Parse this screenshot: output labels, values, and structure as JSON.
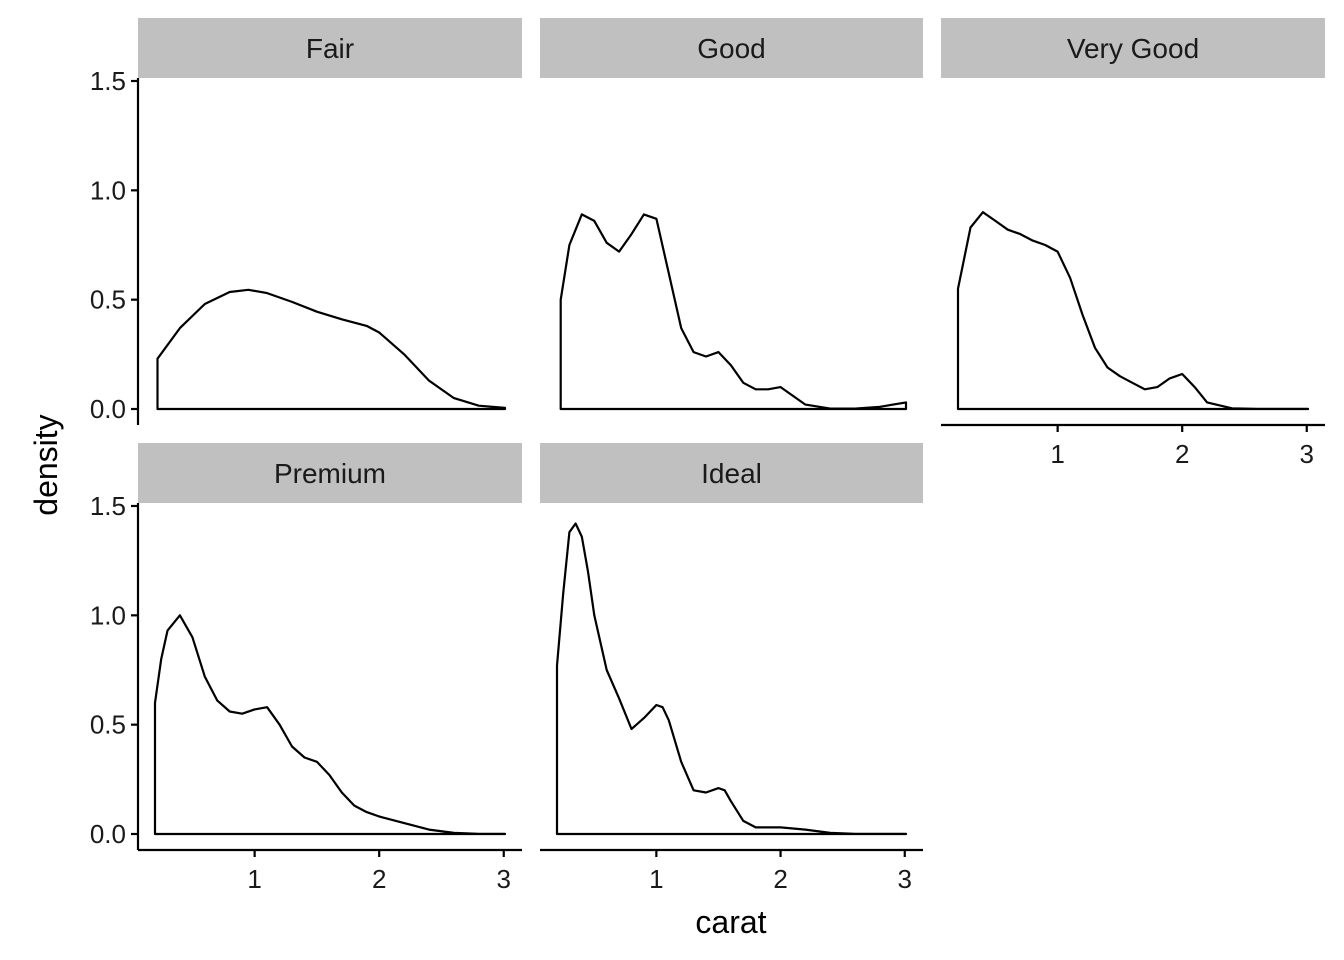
{
  "chart_data": {
    "type": "area",
    "facet_by": "cut",
    "xlabel": "carat",
    "ylabel": "density",
    "xlim": [
      0.2,
      3.01
    ],
    "ylim": [
      0,
      1.5
    ],
    "x_ticks": [
      1,
      2,
      3
    ],
    "y_ticks": [
      0.0,
      0.5,
      1.0,
      1.5
    ],
    "y_tick_labels": [
      "0.0",
      "0.5",
      "1.0",
      "1.5"
    ],
    "grid": false,
    "panels": [
      {
        "name": "Fair",
        "x": [
          0.22,
          0.4,
          0.6,
          0.8,
          0.95,
          1.1,
          1.3,
          1.5,
          1.7,
          1.9,
          2.0,
          2.2,
          2.4,
          2.6,
          2.8,
          3.01
        ],
        "density": [
          0.23,
          0.37,
          0.48,
          0.535,
          0.545,
          0.53,
          0.49,
          0.445,
          0.41,
          0.38,
          0.35,
          0.25,
          0.13,
          0.05,
          0.015,
          0.005
        ]
      },
      {
        "name": "Good",
        "x": [
          0.23,
          0.3,
          0.4,
          0.5,
          0.6,
          0.7,
          0.8,
          0.9,
          1.0,
          1.1,
          1.2,
          1.3,
          1.4,
          1.5,
          1.6,
          1.7,
          1.8,
          1.9,
          2.0,
          2.1,
          2.2,
          2.4,
          2.6,
          2.8,
          3.01
        ],
        "density": [
          0.5,
          0.75,
          0.89,
          0.86,
          0.76,
          0.72,
          0.8,
          0.89,
          0.87,
          0.62,
          0.37,
          0.26,
          0.24,
          0.26,
          0.2,
          0.12,
          0.09,
          0.09,
          0.1,
          0.06,
          0.02,
          0.002,
          0.002,
          0.01,
          0.03
        ]
      },
      {
        "name": "Very Good",
        "x": [
          0.2,
          0.3,
          0.4,
          0.5,
          0.6,
          0.7,
          0.8,
          0.9,
          1.0,
          1.1,
          1.2,
          1.3,
          1.4,
          1.5,
          1.6,
          1.7,
          1.8,
          1.9,
          2.0,
          2.1,
          2.2,
          2.4,
          2.6,
          2.8,
          3.01
        ],
        "density": [
          0.55,
          0.83,
          0.9,
          0.86,
          0.82,
          0.8,
          0.77,
          0.75,
          0.72,
          0.6,
          0.43,
          0.28,
          0.19,
          0.15,
          0.12,
          0.09,
          0.1,
          0.14,
          0.16,
          0.1,
          0.03,
          0.003,
          0.001,
          0.001,
          0.001
        ]
      },
      {
        "name": "Premium",
        "x": [
          0.2,
          0.25,
          0.3,
          0.4,
          0.5,
          0.6,
          0.7,
          0.8,
          0.9,
          1.0,
          1.1,
          1.2,
          1.3,
          1.4,
          1.5,
          1.6,
          1.7,
          1.8,
          1.9,
          2.0,
          2.2,
          2.4,
          2.6,
          2.8,
          3.01
        ],
        "density": [
          0.6,
          0.8,
          0.93,
          1.0,
          0.9,
          0.72,
          0.61,
          0.56,
          0.55,
          0.57,
          0.58,
          0.5,
          0.4,
          0.35,
          0.33,
          0.27,
          0.19,
          0.13,
          0.1,
          0.08,
          0.05,
          0.02,
          0.005,
          0.001,
          0.001
        ]
      },
      {
        "name": "Ideal",
        "x": [
          0.2,
          0.25,
          0.3,
          0.35,
          0.4,
          0.45,
          0.5,
          0.6,
          0.7,
          0.8,
          0.9,
          1.0,
          1.05,
          1.1,
          1.2,
          1.3,
          1.4,
          1.5,
          1.55,
          1.6,
          1.7,
          1.8,
          2.0,
          2.2,
          2.4,
          2.6,
          2.8,
          3.01
        ],
        "density": [
          0.77,
          1.1,
          1.38,
          1.42,
          1.36,
          1.2,
          1.0,
          0.75,
          0.62,
          0.48,
          0.53,
          0.59,
          0.58,
          0.52,
          0.33,
          0.2,
          0.19,
          0.21,
          0.2,
          0.15,
          0.06,
          0.03,
          0.03,
          0.02,
          0.005,
          0.001,
          0.001,
          0.001
        ]
      }
    ]
  }
}
